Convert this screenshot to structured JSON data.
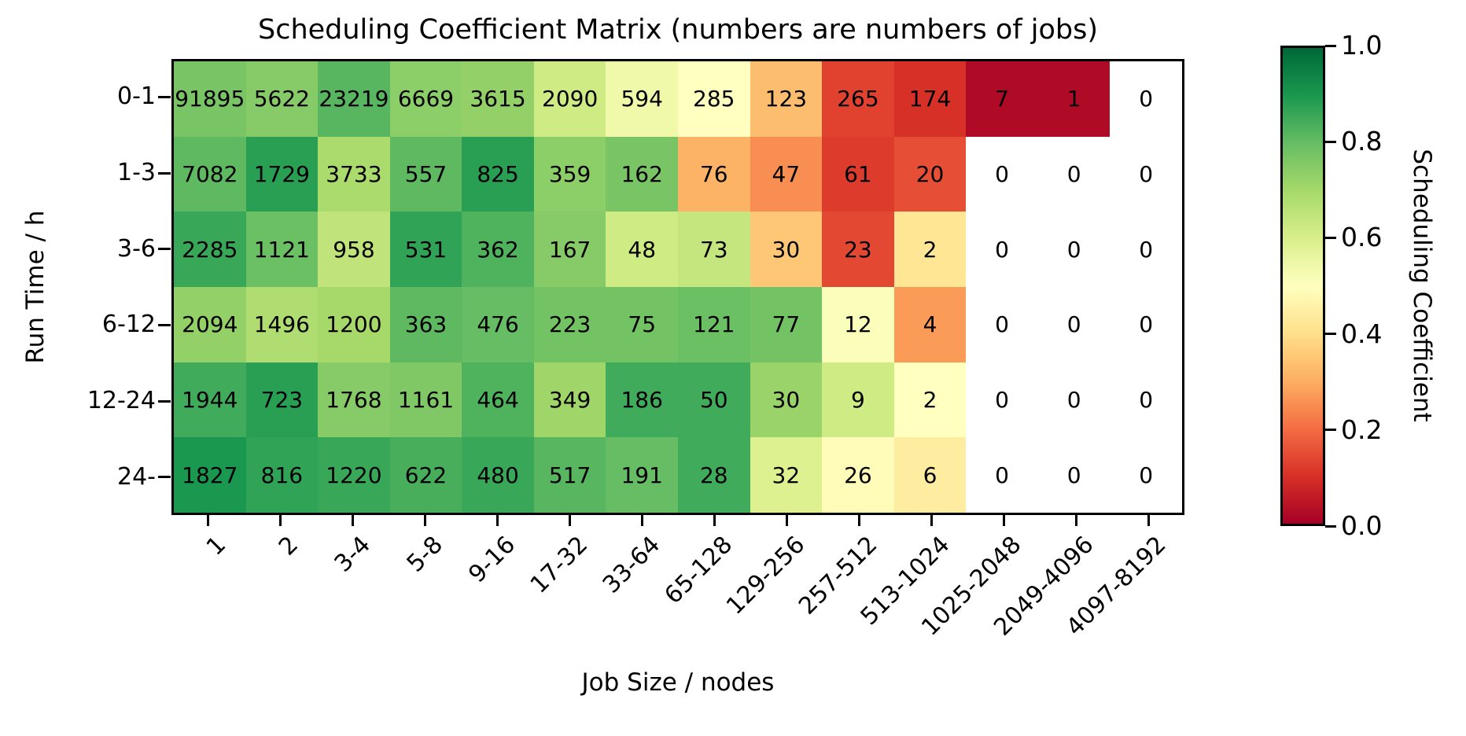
{
  "chart_data": {
    "type": "heatmap",
    "title": "Scheduling Coefficient Matrix (numbers are numbers of jobs)",
    "xlabel": "Job Size / nodes",
    "ylabel": "Run Time / h",
    "x_categories": [
      "1",
      "2",
      "3-4",
      "5-8",
      "9-16",
      "17-32",
      "33-64",
      "65-128",
      "129-256",
      "257-512",
      "513-1024",
      "1025-2048",
      "2049-4096",
      "4097-8192"
    ],
    "y_categories": [
      "0-1",
      "1-3",
      "3-6",
      "6-12",
      "12-24",
      "24-"
    ],
    "annotation_meaning": "numbers of jobs",
    "job_counts": [
      [
        91895,
        5622,
        23219,
        6669,
        3615,
        2090,
        594,
        285,
        123,
        265,
        174,
        7,
        1,
        0
      ],
      [
        7082,
        1729,
        3733,
        557,
        825,
        359,
        162,
        76,
        47,
        61,
        20,
        0,
        0,
        0
      ],
      [
        2285,
        1121,
        958,
        531,
        362,
        167,
        48,
        73,
        30,
        23,
        2,
        0,
        0,
        0
      ],
      [
        2094,
        1496,
        1200,
        363,
        476,
        223,
        75,
        121,
        77,
        12,
        4,
        0,
        0,
        0
      ],
      [
        1944,
        723,
        1768,
        1161,
        464,
        349,
        186,
        50,
        30,
        9,
        2,
        0,
        0,
        0
      ],
      [
        1827,
        816,
        1220,
        622,
        480,
        517,
        191,
        28,
        32,
        26,
        6,
        0,
        0,
        0
      ]
    ],
    "scheduling_coefficients": [
      [
        0.77,
        0.75,
        0.82,
        0.74,
        0.73,
        0.62,
        0.54,
        0.5,
        0.33,
        0.13,
        0.1,
        0.02,
        0.02,
        null
      ],
      [
        0.81,
        0.88,
        0.69,
        0.81,
        0.88,
        0.74,
        0.77,
        0.31,
        0.25,
        0.12,
        0.15,
        null,
        null,
        null
      ],
      [
        0.86,
        0.79,
        0.65,
        0.87,
        0.83,
        0.75,
        0.62,
        0.64,
        0.35,
        0.14,
        0.42,
        null,
        null,
        null
      ],
      [
        0.73,
        0.68,
        0.7,
        0.81,
        0.8,
        0.78,
        0.78,
        0.79,
        0.78,
        0.51,
        0.27,
        null,
        null,
        null
      ],
      [
        0.85,
        0.88,
        0.75,
        0.76,
        0.83,
        0.71,
        0.85,
        0.85,
        0.72,
        0.62,
        0.5,
        null,
        null,
        null
      ],
      [
        0.9,
        0.87,
        0.86,
        0.84,
        0.86,
        0.82,
        0.8,
        0.85,
        0.59,
        0.49,
        0.44,
        null,
        null,
        null
      ]
    ],
    "colorbar": {
      "label": "Scheduling Coefficient",
      "tick_labels": [
        "0.0",
        "0.2",
        "0.4",
        "0.6",
        "0.8",
        "1.0"
      ],
      "range": [
        0.0,
        1.0
      ],
      "colormap": "RdYlGn",
      "colormap_stops": [
        "#a50026",
        "#d73027",
        "#f46d43",
        "#fdae61",
        "#fee08b",
        "#ffffbf",
        "#d9ef8b",
        "#a6d96a",
        "#66bd63",
        "#1a9850",
        "#006837"
      ]
    },
    "no_data_color": "#ffffff",
    "text_color": "#000000"
  }
}
